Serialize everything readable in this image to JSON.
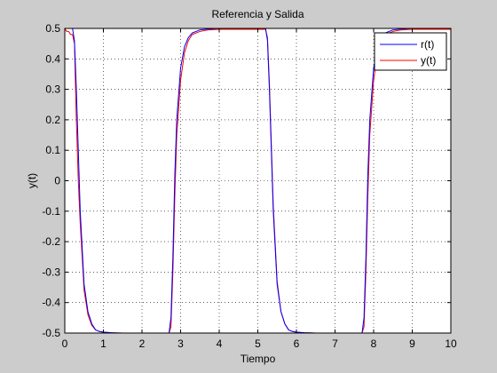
{
  "chart_data": {
    "type": "line",
    "title": "Referencia y Salida",
    "xlabel": "Tiempo",
    "ylabel": "y(t)",
    "xlim": [
      0,
      10
    ],
    "ylim": [
      -0.5,
      0.5
    ],
    "xticks": [
      0,
      1,
      2,
      3,
      4,
      5,
      6,
      7,
      8,
      9,
      10
    ],
    "yticks": [
      -0.5,
      -0.4,
      -0.3,
      -0.2,
      -0.1,
      0,
      0.1,
      0.2,
      0.3,
      0.4,
      0.5
    ],
    "grid": true,
    "legend_position": "top-right",
    "series": [
      {
        "name": "r(t)",
        "color": "#0000ff",
        "x": [
          0.0,
          0.2,
          0.25,
          0.3,
          0.35,
          0.4,
          0.5,
          0.6,
          0.7,
          0.8,
          0.9,
          1.0,
          1.2,
          1.5,
          2.0,
          2.5,
          2.7,
          2.75,
          2.8,
          2.85,
          2.9,
          3.0,
          3.1,
          3.2,
          3.3,
          3.5,
          3.7,
          4.0,
          4.5,
          5.0,
          5.2,
          5.25,
          5.3,
          5.35,
          5.4,
          5.5,
          5.6,
          5.7,
          5.8,
          5.9,
          6.0,
          6.2,
          6.5,
          7.0,
          7.5,
          7.7,
          7.75,
          7.8,
          7.85,
          7.9,
          8.0,
          8.1,
          8.2,
          8.3,
          8.5,
          8.7,
          9.0,
          9.5,
          10.0
        ],
        "y": [
          0.5,
          0.5,
          0.46,
          0.3,
          0.1,
          -0.1,
          -0.34,
          -0.43,
          -0.47,
          -0.49,
          -0.495,
          -0.497,
          -0.499,
          -0.5,
          -0.5,
          -0.5,
          -0.5,
          -0.45,
          -0.25,
          0.02,
          0.2,
          0.37,
          0.44,
          0.47,
          0.485,
          0.495,
          0.498,
          0.5,
          0.5,
          0.5,
          0.5,
          0.46,
          0.3,
          0.1,
          -0.1,
          -0.34,
          -0.43,
          -0.47,
          -0.49,
          -0.495,
          -0.497,
          -0.499,
          -0.5,
          -0.5,
          -0.5,
          -0.5,
          -0.45,
          -0.25,
          0.02,
          0.2,
          0.37,
          0.44,
          0.47,
          0.485,
          0.495,
          0.498,
          0.5,
          0.5,
          0.5
        ]
      },
      {
        "name": "y(t)",
        "color": "#ff0000",
        "x": [
          0.0,
          0.05,
          0.1,
          0.15,
          0.2,
          0.25,
          0.3,
          0.35,
          0.4,
          0.5,
          0.6,
          0.7,
          0.8,
          0.9,
          1.0,
          1.2,
          1.5,
          2.0,
          2.5,
          2.7,
          2.75,
          2.8,
          2.85,
          2.9,
          3.0,
          3.1,
          3.2,
          3.3,
          3.5,
          3.7,
          4.0,
          4.5,
          5.0,
          5.2,
          5.25,
          5.3,
          5.35,
          5.4,
          5.5,
          5.6,
          5.7,
          5.8,
          5.9,
          6.0,
          6.2,
          6.5,
          7.0,
          7.5,
          7.7,
          7.75,
          7.8,
          7.85,
          7.9,
          8.0,
          8.1,
          8.2,
          8.3,
          8.5,
          8.7,
          9.0,
          9.5,
          10.0
        ],
        "y": [
          0.5,
          0.49,
          0.49,
          0.48,
          0.48,
          0.45,
          0.2,
          0.0,
          -0.14,
          -0.36,
          -0.44,
          -0.475,
          -0.49,
          -0.495,
          -0.497,
          -0.499,
          -0.5,
          -0.5,
          -0.5,
          -0.5,
          -0.48,
          -0.3,
          -0.05,
          0.15,
          0.33,
          0.42,
          0.46,
          0.48,
          0.49,
          0.495,
          0.497,
          0.497,
          0.497,
          0.497,
          0.47,
          0.32,
          0.12,
          -0.08,
          -0.33,
          -0.43,
          -0.47,
          -0.49,
          -0.495,
          -0.497,
          -0.499,
          -0.5,
          -0.5,
          -0.5,
          -0.5,
          -0.48,
          -0.3,
          -0.05,
          0.15,
          0.33,
          0.42,
          0.46,
          0.48,
          0.49,
          0.495,
          0.497,
          0.497,
          0.497
        ]
      }
    ]
  }
}
